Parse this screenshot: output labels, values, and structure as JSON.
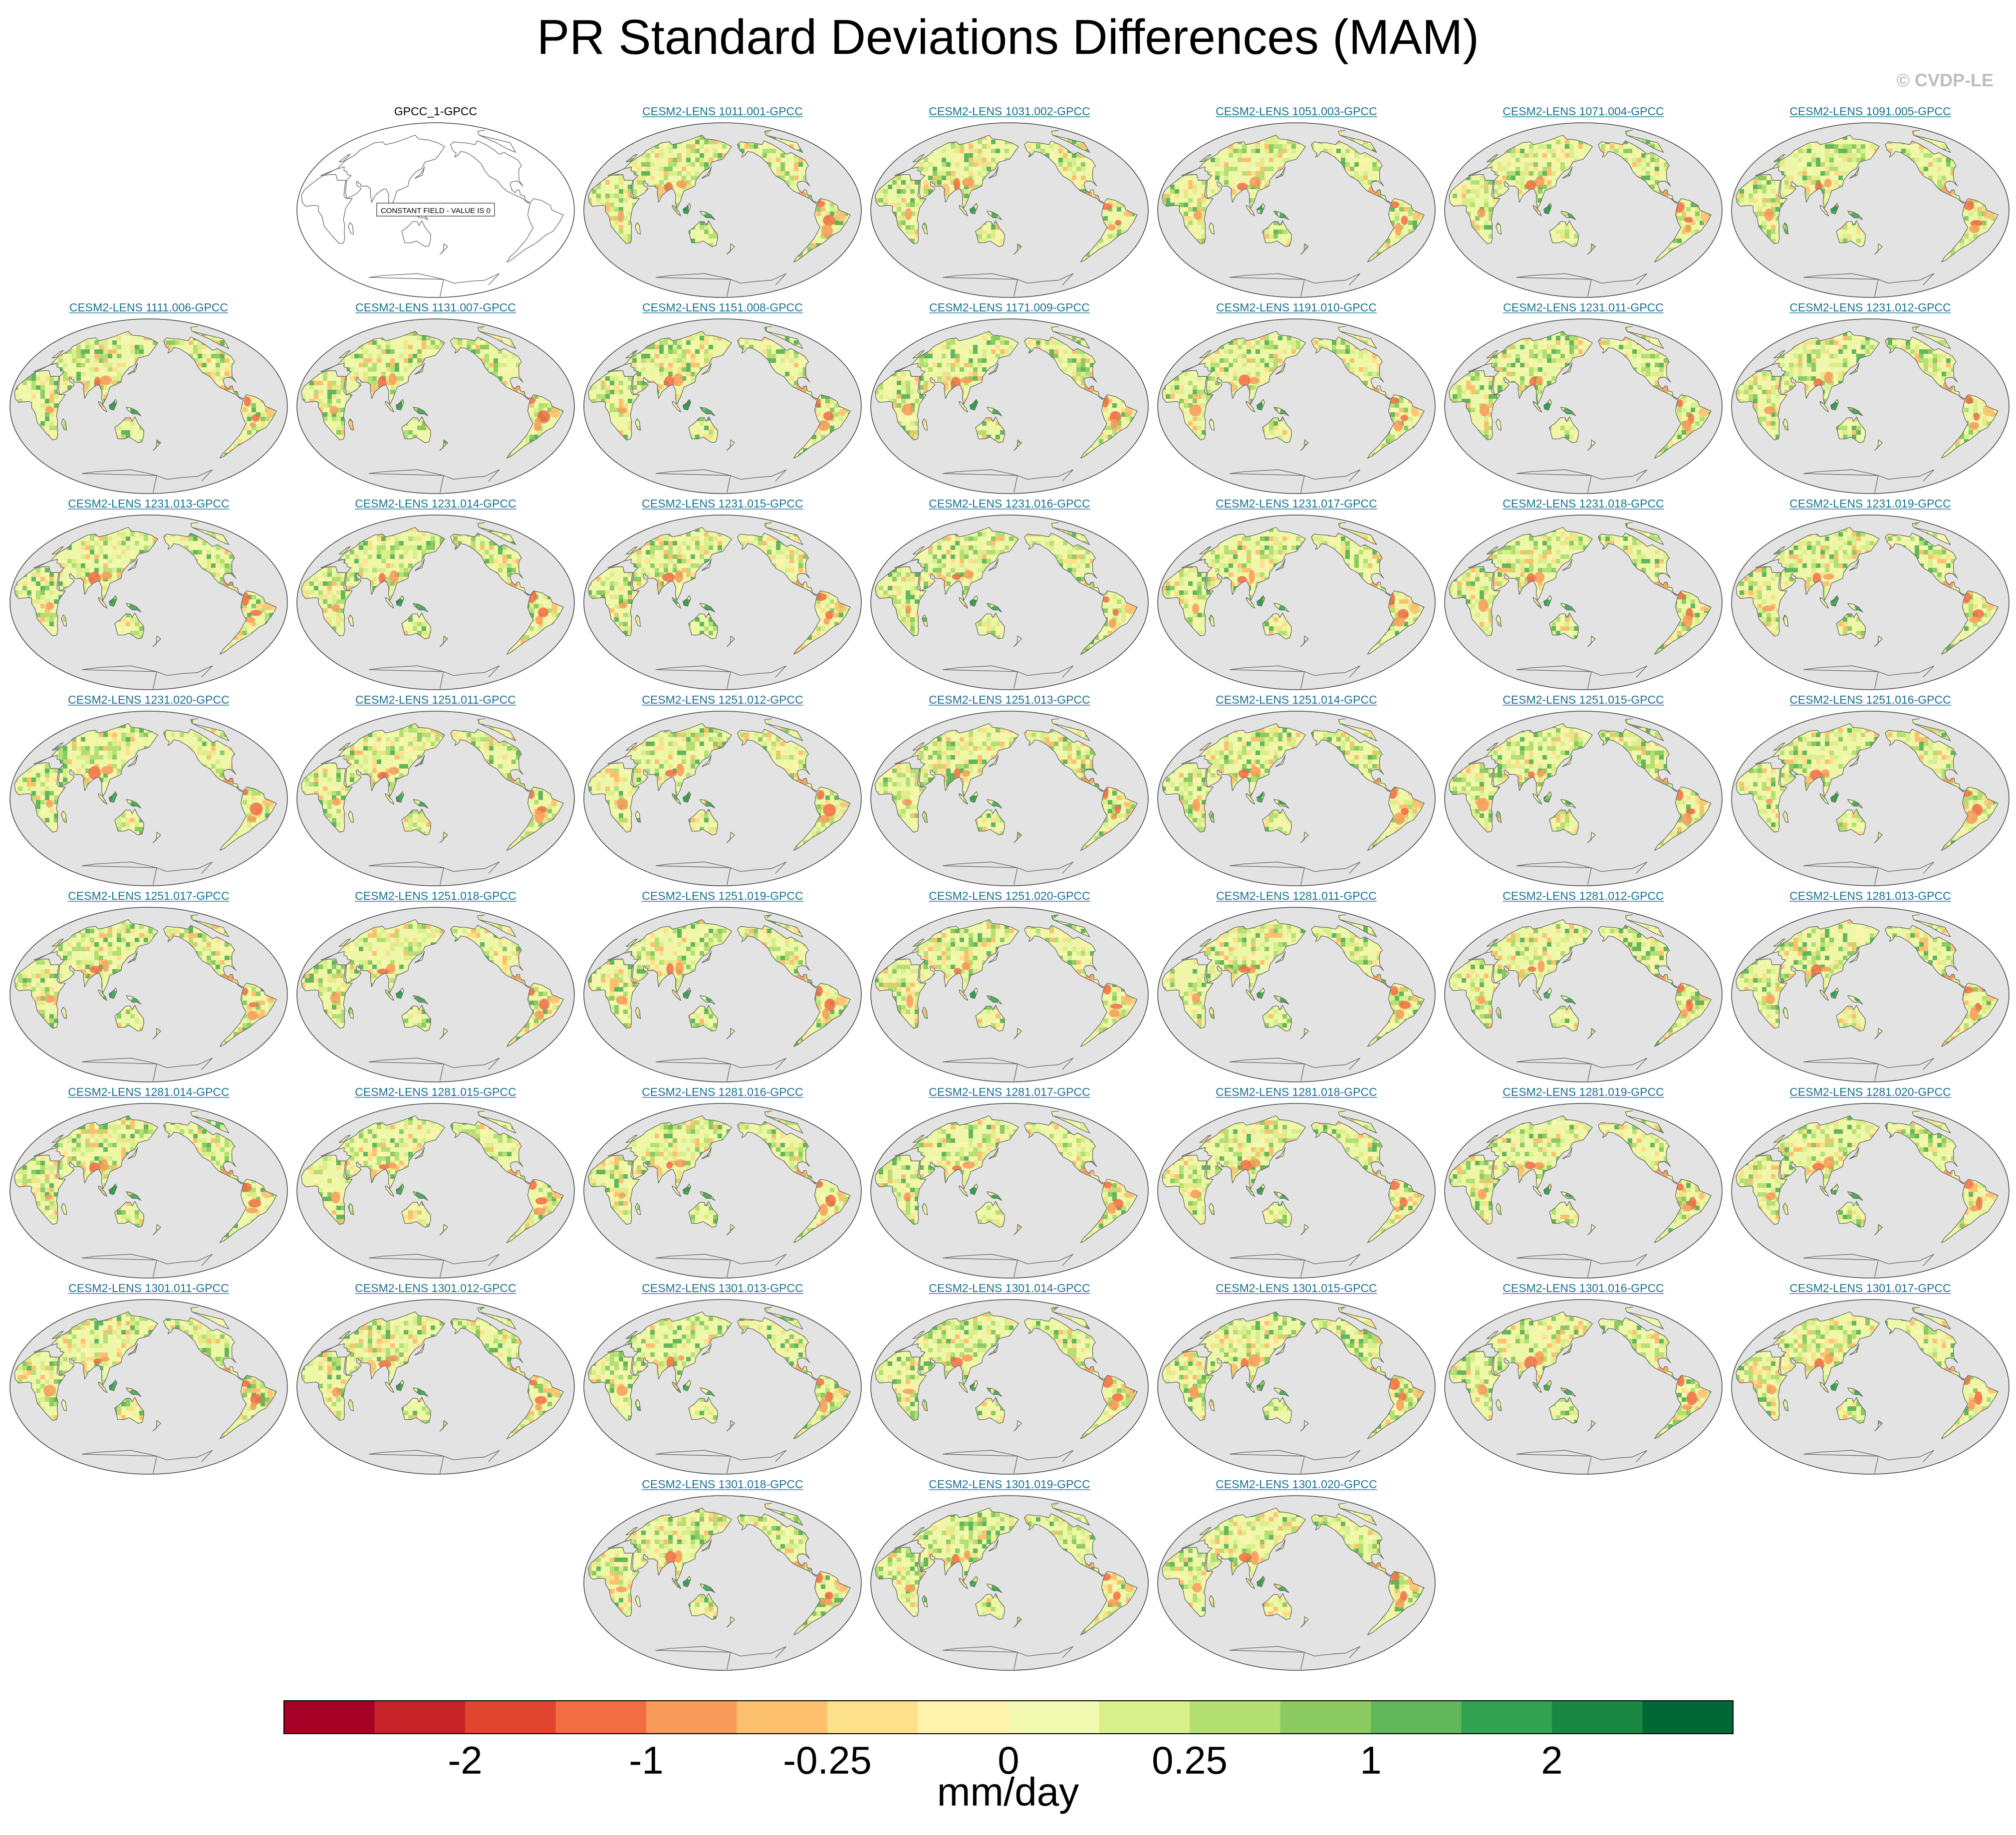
{
  "title": "PR Standard Deviations Differences (MAM)",
  "credit": "© CVDP-LE",
  "colors": {
    "ocean": "#e3e3e3",
    "map_border": "#444444",
    "coast": "#666666",
    "panel_title": "#1a6f8d"
  },
  "chart_data": {
    "type": "heatmap",
    "projection": "Robinson (Pacific-centered)",
    "variable": "PR standard deviation difference",
    "season": "MAM",
    "panels": [
      {
        "label": "GPCC_1-GPCC",
        "constant_field": true,
        "note": "CONSTANT FIELD - VALUE IS 0"
      },
      {
        "label": "CESM2-LENS 1011.001-GPCC"
      },
      {
        "label": "CESM2-LENS 1031.002-GPCC"
      },
      {
        "label": "CESM2-LENS 1051.003-GPCC"
      },
      {
        "label": "CESM2-LENS 1071.004-GPCC"
      },
      {
        "label": "CESM2-LENS 1091.005-GPCC"
      },
      {
        "label": "CESM2-LENS 1111.006-GPCC"
      },
      {
        "label": "CESM2-LENS 1131.007-GPCC"
      },
      {
        "label": "CESM2-LENS 1151.008-GPCC"
      },
      {
        "label": "CESM2-LENS 1171.009-GPCC"
      },
      {
        "label": "CESM2-LENS 1191.010-GPCC"
      },
      {
        "label": "CESM2-LENS 1231.011-GPCC"
      },
      {
        "label": "CESM2-LENS 1231.012-GPCC"
      },
      {
        "label": "CESM2-LENS 1231.013-GPCC"
      },
      {
        "label": "CESM2-LENS 1231.014-GPCC"
      },
      {
        "label": "CESM2-LENS 1231.015-GPCC"
      },
      {
        "label": "CESM2-LENS 1231.016-GPCC"
      },
      {
        "label": "CESM2-LENS 1231.017-GPCC"
      },
      {
        "label": "CESM2-LENS 1231.018-GPCC"
      },
      {
        "label": "CESM2-LENS 1231.019-GPCC"
      },
      {
        "label": "CESM2-LENS 1231.020-GPCC"
      },
      {
        "label": "CESM2-LENS 1251.011-GPCC"
      },
      {
        "label": "CESM2-LENS 1251.012-GPCC"
      },
      {
        "label": "CESM2-LENS 1251.013-GPCC"
      },
      {
        "label": "CESM2-LENS 1251.014-GPCC"
      },
      {
        "label": "CESM2-LENS 1251.015-GPCC"
      },
      {
        "label": "CESM2-LENS 1251.016-GPCC"
      },
      {
        "label": "CESM2-LENS 1251.017-GPCC"
      },
      {
        "label": "CESM2-LENS 1251.018-GPCC"
      },
      {
        "label": "CESM2-LENS 1251.019-GPCC"
      },
      {
        "label": "CESM2-LENS 1251.020-GPCC"
      },
      {
        "label": "CESM2-LENS 1281.011-GPCC"
      },
      {
        "label": "CESM2-LENS 1281.012-GPCC"
      },
      {
        "label": "CESM2-LENS 1281.013-GPCC"
      },
      {
        "label": "CESM2-LENS 1281.014-GPCC"
      },
      {
        "label": "CESM2-LENS 1281.015-GPCC"
      },
      {
        "label": "CESM2-LENS 1281.016-GPCC"
      },
      {
        "label": "CESM2-LENS 1281.017-GPCC"
      },
      {
        "label": "CESM2-LENS 1281.018-GPCC"
      },
      {
        "label": "CESM2-LENS 1281.019-GPCC"
      },
      {
        "label": "CESM2-LENS 1281.020-GPCC"
      },
      {
        "label": "CESM2-LENS 1301.011-GPCC"
      },
      {
        "label": "CESM2-LENS 1301.012-GPCC"
      },
      {
        "label": "CESM2-LENS 1301.013-GPCC"
      },
      {
        "label": "CESM2-LENS 1301.014-GPCC"
      },
      {
        "label": "CESM2-LENS 1301.015-GPCC"
      },
      {
        "label": "CESM2-LENS 1301.016-GPCC"
      },
      {
        "label": "CESM2-LENS 1301.017-GPCC"
      },
      {
        "label": "CESM2-LENS 1301.018-GPCC"
      },
      {
        "label": "CESM2-LENS 1301.019-GPCC"
      },
      {
        "label": "CESM2-LENS 1301.020-GPCC"
      }
    ],
    "colorbar": {
      "units": "mm/day",
      "tick_labels": [
        "-2",
        "-1",
        "-0.25",
        "0",
        "0.25",
        "1",
        "2"
      ],
      "colors": [
        "#a50026",
        "#c62328",
        "#e04530",
        "#f26c44",
        "#f89a59",
        "#fcc06f",
        "#fde08b",
        "#fef3ac",
        "#f2f9b0",
        "#d9ef8b",
        "#b4df72",
        "#8cca62",
        "#62b75c",
        "#33a152",
        "#1a8842",
        "#006837"
      ]
    }
  }
}
